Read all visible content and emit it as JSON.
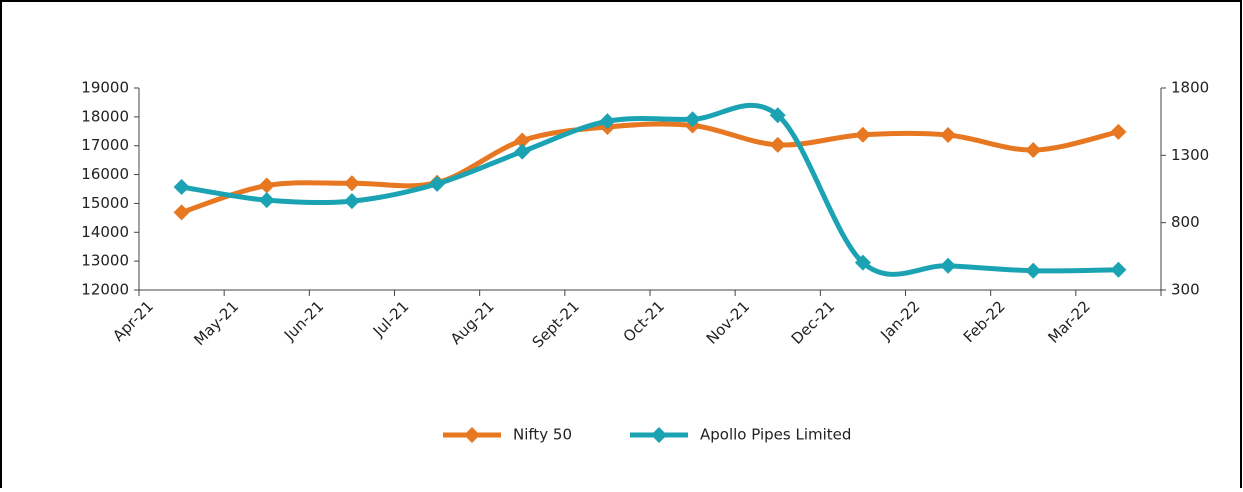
{
  "chart_data": {
    "type": "line",
    "categories": [
      "Apr-21",
      "May-21",
      "Jun-21",
      "Jul-21",
      "Aug-21",
      "Sept-21",
      "Oct-21",
      "Nov-21",
      "Dec-21",
      "Jan-22",
      "Feb-22",
      "Mar-22"
    ],
    "series": [
      {
        "name": "Nifty 50",
        "color": "#e87722",
        "values": [
          14690,
          15620,
          15700,
          15720,
          17180,
          17650,
          17700,
          17030,
          17380,
          17370,
          16850,
          17480
        ]
      },
      {
        "name": "Apollo Pipes Limited",
        "color": "#1ba3b3",
        "axis": "y2",
        "values": [
          1065,
          967,
          960,
          1088,
          1328,
          1553,
          1568,
          1598,
          503,
          480,
          443,
          450
        ]
      }
    ],
    "ylim": [
      12000,
      19000
    ],
    "yticks": [
      12000,
      13000,
      14000,
      15000,
      16000,
      17000,
      18000,
      19000
    ],
    "y2lim": [
      300,
      1800
    ],
    "y2ticks": [
      300,
      800,
      1300,
      1800
    ],
    "legend": "bottom"
  }
}
